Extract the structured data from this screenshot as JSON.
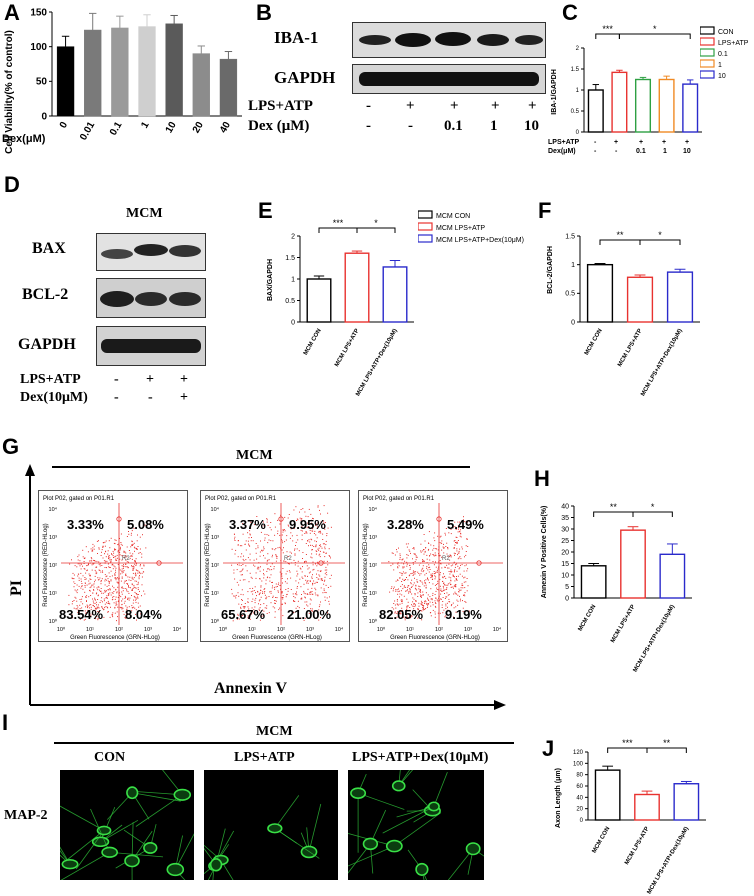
{
  "panels": {
    "A": "A",
    "B": "B",
    "C": "C",
    "D": "D",
    "E": "E",
    "F": "F",
    "G": "G",
    "H": "H",
    "I": "I",
    "J": "J"
  },
  "panelA": {
    "ylabel": "Cell Viability(% of control)",
    "dex_label": "Dex(μM)"
  },
  "panelB": {
    "band1": "IBA-1",
    "band2": "GAPDH",
    "row1_label": "LPS+ATP",
    "row2_label": "Dex (μM)",
    "row1": [
      "-",
      "+",
      "+",
      "+",
      "+"
    ],
    "row2": [
      "-",
      "-",
      "0.1",
      "1",
      "10"
    ]
  },
  "panelC": {
    "ylabel": "IBA-1/GAPDH",
    "row1_label": "LPS+ATP",
    "row2_label": "Dex(μM)",
    "row1": [
      "-",
      "+",
      "+",
      "+",
      "+"
    ],
    "row2": [
      "-",
      "-",
      "0.1",
      "1",
      "10"
    ],
    "sig1": "***",
    "sig2": "*"
  },
  "panelD": {
    "title": "MCM",
    "band1": "BAX",
    "band2": "BCL-2",
    "band3": "GAPDH",
    "row1_label": "LPS+ATP",
    "row2_label": "Dex(10μM)",
    "row1": [
      "-",
      "+",
      "+"
    ],
    "row2": [
      "-",
      "-",
      "+"
    ]
  },
  "panelE": {
    "ylabel": "BAX/GAPDH",
    "sig1": "***",
    "sig2": "*"
  },
  "panelF": {
    "ylabel": "BCL-2/GAPDH",
    "sig1": "**",
    "sig2": "*"
  },
  "panelG": {
    "title": "MCM",
    "y_axis": "PI",
    "x_axis": "Annexin V",
    "plot_header": "Plot P02, gated on P01.R1",
    "plot_xlabel": "Green Fluorescence (GRN-HLog)",
    "plot_ylabel": "Red Fluorescence (RED-HLog)",
    "gate": "R2",
    "ticks": [
      "10⁰",
      "10¹",
      "10²",
      "10³",
      "10⁴"
    ],
    "plots": [
      {
        "ul": "3.33%",
        "ur": "5.08%",
        "ll": "83.54%",
        "lr": "8.04%"
      },
      {
        "ul": "3.37%",
        "ur": "9.95%",
        "ll": "65.67%",
        "lr": "21.00%"
      },
      {
        "ul": "3.28%",
        "ur": "5.49%",
        "ll": "82.05%",
        "lr": "9.19%"
      }
    ]
  },
  "panelH": {
    "ylabel": "Annexin V Positive Cells(%)",
    "sig1": "**",
    "sig2": "*"
  },
  "panelI": {
    "title": "MCM",
    "col1": "CON",
    "col2": "LPS+ATP",
    "col3": "LPS+ATP+Dex(10μM)",
    "row_label": "MAP-2"
  },
  "panelJ": {
    "ylabel": "Axon Length (μm)",
    "sig1": "***",
    "sig2": "**"
  },
  "legendC": [
    "CON",
    "LPS+ATP",
    "0.1",
    "1",
    "10"
  ],
  "legendE": [
    "MCM CON",
    "MCM LPS+ATP",
    "MCM LPS+ATP+Dex(10μM)"
  ],
  "mcm_categories": [
    "MCM CON",
    "MCM LPS+ATP",
    "MCM LPS+ATP+Dex(10μM)"
  ],
  "colors": {
    "black": "#000000",
    "red": "#e8322f",
    "green": "#2ea043",
    "orange": "#f08a24",
    "blue": "#2a2acb"
  },
  "chart_data": [
    {
      "id": "A",
      "type": "bar",
      "categories": [
        "0",
        "0.01",
        "0.1",
        "1",
        "10",
        "20",
        "40"
      ],
      "values": [
        100,
        124,
        127,
        129,
        133,
        90,
        82
      ],
      "errors": [
        15,
        24,
        17,
        17,
        12,
        11,
        11
      ],
      "ylim": [
        0,
        150
      ],
      "yticks": [
        0,
        50,
        100,
        150
      ],
      "xlabel": "Dex(μM)",
      "ylabel": "Cell Viability(% of control)",
      "bar_colors": [
        "#000000",
        "#7a7a7a",
        "#9a9a9a",
        "#cfcfcf",
        "#5a5a5a",
        "#8c8c8c",
        "#6a6a6a"
      ]
    },
    {
      "id": "C",
      "type": "bar",
      "categories": [
        "CON",
        "LPS+ATP",
        "0.1",
        "1",
        "10"
      ],
      "values": [
        1.0,
        1.42,
        1.25,
        1.25,
        1.14
      ],
      "errors": [
        0.13,
        0.05,
        0.05,
        0.08,
        0.1
      ],
      "ylim": [
        0,
        2.0
      ],
      "yticks": [
        0,
        0.5,
        1.0,
        1.5,
        2.0
      ],
      "ylabel": "IBA-1/GAPDH"
    },
    {
      "id": "E",
      "type": "bar",
      "categories": [
        "MCM CON",
        "MCM LPS+ATP",
        "MCM LPS+ATP+Dex(10μM)"
      ],
      "values": [
        1.0,
        1.6,
        1.28
      ],
      "errors": [
        0.07,
        0.05,
        0.15
      ],
      "ylim": [
        0,
        2.0
      ],
      "yticks": [
        0,
        0.5,
        1.0,
        1.5,
        2.0
      ],
      "ylabel": "BAX/GAPDH"
    },
    {
      "id": "F",
      "type": "bar",
      "categories": [
        "MCM CON",
        "MCM LPS+ATP",
        "MCM LPS+ATP+Dex(10μM)"
      ],
      "values": [
        1.0,
        0.78,
        0.87
      ],
      "errors": [
        0.02,
        0.04,
        0.05
      ],
      "ylim": [
        0,
        1.5
      ],
      "yticks": [
        0,
        0.5,
        1.0,
        1.5
      ],
      "ylabel": "BCL-2/GAPDH"
    },
    {
      "id": "H",
      "type": "bar",
      "categories": [
        "MCM CON",
        "MCM LPS+ATP",
        "MCM LPS+ATP+Dex(10μM)"
      ],
      "values": [
        14,
        29.5,
        19
      ],
      "errors": [
        1,
        1.5,
        4.5
      ],
      "ylim": [
        0,
        40
      ],
      "yticks": [
        0,
        5,
        10,
        15,
        20,
        25,
        30,
        35,
        40
      ],
      "ylabel": "Annexin V Positive Cells(%)"
    },
    {
      "id": "J",
      "type": "bar",
      "categories": [
        "MCM CON",
        "MCM LPS+ATP",
        "MCM LPS+ATP+Dex(10μM)"
      ],
      "values": [
        88,
        45,
        64
      ],
      "errors": [
        7,
        6,
        4
      ],
      "ylim": [
        0,
        120
      ],
      "yticks": [
        0,
        20,
        40,
        60,
        80,
        100,
        120
      ],
      "ylabel": "Axon Length (μm)"
    }
  ]
}
